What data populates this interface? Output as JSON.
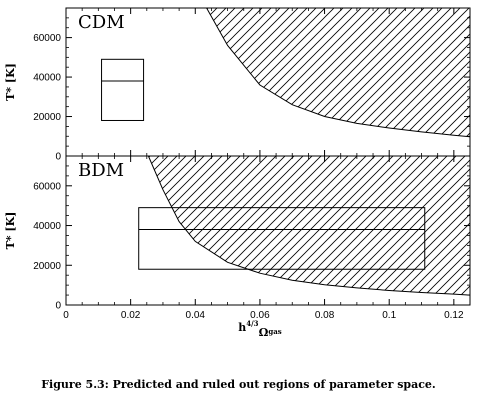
{
  "caption": "Figure 5.3: Predicted and ruled out regions of parameter space.",
  "chart_data": [
    {
      "type": "area",
      "panel_label": "CDM",
      "ylabel": "T* [K]",
      "xlim": [
        0,
        0.125
      ],
      "ylim": [
        0,
        75000
      ],
      "x_ticks": [
        0,
        0.02,
        0.04,
        0.06,
        0.08,
        0.1,
        0.12
      ],
      "y_ticks": [
        0,
        20000,
        40000,
        60000
      ],
      "y_tick_labels": [
        "0",
        "20000",
        "40000",
        "60000"
      ],
      "excluded_region": {
        "hatched": true,
        "boundary": {
          "x": [
            0.0435,
            0.05,
            0.06,
            0.07,
            0.08,
            0.09,
            0.1,
            0.11,
            0.12,
            0.125
          ],
          "y": [
            75000,
            56000,
            36000,
            26000,
            20000,
            16500,
            14200,
            12200,
            10500,
            9800
          ]
        }
      },
      "predicted_box": {
        "x": [
          0.011,
          0.024
        ],
        "y": [
          18000,
          49000
        ],
        "mid_line_y": 38000
      }
    },
    {
      "type": "area",
      "panel_label": "BDM",
      "xlabel": "h^{4/3}Ω_{gas}",
      "ylabel": "T* [K]",
      "xlim": [
        0,
        0.125
      ],
      "ylim": [
        0,
        75000
      ],
      "x_ticks": [
        0,
        0.02,
        0.04,
        0.06,
        0.08,
        0.1,
        0.12
      ],
      "x_tick_labels": [
        "0",
        "0.02",
        "0.04",
        "0.06",
        "0.08",
        "0.1",
        "0.12"
      ],
      "y_ticks": [
        0,
        20000,
        40000,
        60000
      ],
      "y_tick_labels": [
        "0",
        "20000",
        "40000",
        "60000"
      ],
      "excluded_region": {
        "hatched": true,
        "boundary": {
          "x": [
            0.0255,
            0.03,
            0.035,
            0.04,
            0.05,
            0.06,
            0.07,
            0.08,
            0.09,
            0.1,
            0.11,
            0.12,
            0.125
          ],
          "y": [
            75000,
            58000,
            42000,
            32000,
            21500,
            16000,
            12500,
            10200,
            8600,
            7300,
            6300,
            5500,
            5000
          ]
        }
      },
      "predicted_box": {
        "x": [
          0.0225,
          0.111
        ],
        "y": [
          18000,
          49000
        ],
        "mid_line_y": 38000
      }
    }
  ]
}
